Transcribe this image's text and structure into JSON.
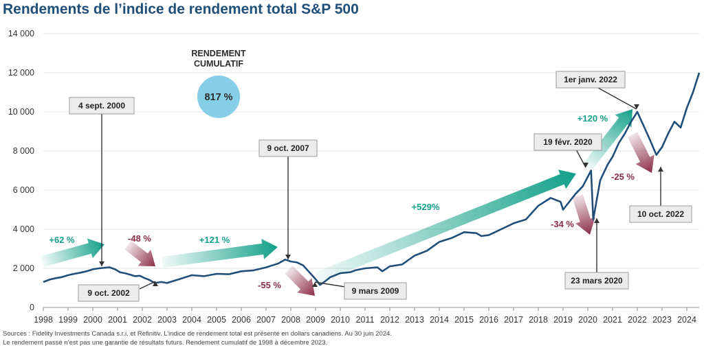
{
  "title": "Rendements de l’indice de rendement total S&P 500",
  "sources": [
    "Sources : Fidelity Investments Canada s.r.i. et Refinitiv. L’indice de rendement total est présenté en dollars canadiens. Au 30 juin 2024.",
    "Le rendement passé n’est pas une garantie de résultats futurs. Rendement cumulatif de 1998 à décembre 2023."
  ],
  "colors": {
    "line": "#1f4e79",
    "gain": "#13a089",
    "loss": "#8b2d47",
    "bubble": "#86cfe6",
    "title": "#1f4e79"
  },
  "cumulative": {
    "label_line1": "RENDEMENT",
    "label_line2": "CUMULATIF",
    "value": "817 %"
  },
  "chart_data": {
    "type": "line",
    "title": "Rendements de l’indice de rendement total S&P 500",
    "xlim": [
      1998,
      2024.5
    ],
    "ylim": [
      0,
      14000
    ],
    "yticks": [
      0,
      2000,
      4000,
      6000,
      8000,
      10000,
      12000,
      14000
    ],
    "ytick_labels": [
      "0",
      "2 000",
      "4 000",
      "6 000",
      "8 000",
      "10 000",
      "12 000",
      "14 000"
    ],
    "xticks": [
      "1998",
      "1999",
      "2000",
      "2001",
      "2002",
      "2003",
      "2004",
      "2005",
      "2006",
      "2007",
      "2008",
      "2009",
      "2010",
      "2011",
      "2012",
      "2013",
      "2014",
      "2015",
      "2016",
      "2017",
      "2018",
      "2019",
      "2020",
      "2021",
      "2022",
      "2023",
      "2024"
    ],
    "grid": "horizontal",
    "series": [
      {
        "x": [
          1998.0,
          1998.25,
          1998.5,
          1998.75,
          1999.0,
          1999.25,
          1999.5,
          1999.75,
          2000.0,
          2000.25,
          2000.5,
          2000.68,
          2000.9,
          2001.1,
          2001.3,
          2001.5,
          2001.7,
          2001.9,
          2002.1,
          2002.3,
          2002.5,
          2002.77,
          2003.0,
          2003.25,
          2003.5,
          2003.75,
          2004.0,
          2004.5,
          2005.0,
          2005.5,
          2006.0,
          2006.5,
          2007.0,
          2007.25,
          2007.5,
          2007.77,
          2008.0,
          2008.25,
          2008.5,
          2008.75,
          2009.0,
          2009.18,
          2009.4,
          2009.6,
          2009.8,
          2010.0,
          2010.4,
          2010.6,
          2011.0,
          2011.5,
          2011.7,
          2012.0,
          2012.5,
          2013.0,
          2013.5,
          2014.0,
          2014.5,
          2015.0,
          2015.5,
          2015.7,
          2016.0,
          2016.5,
          2017.0,
          2017.5,
          2018.0,
          2018.5,
          2018.9,
          2019.0,
          2019.5,
          2019.8,
          2020.13,
          2020.22,
          2020.5,
          2020.8,
          2021.0,
          2021.25,
          2021.5,
          2021.75,
          2022.0,
          2022.25,
          2022.5,
          2022.77,
          2023.0,
          2023.25,
          2023.5,
          2023.75,
          2024.0,
          2024.25,
          2024.5
        ],
        "y": [
          1300,
          1420,
          1500,
          1550,
          1650,
          1720,
          1780,
          1850,
          1950,
          2000,
          2030,
          2050,
          1950,
          1800,
          1750,
          1680,
          1600,
          1620,
          1500,
          1400,
          1250,
          1300,
          1250,
          1350,
          1450,
          1550,
          1650,
          1600,
          1720,
          1700,
          1850,
          1900,
          2050,
          2150,
          2250,
          2450,
          2350,
          2300,
          2150,
          1800,
          1450,
          1150,
          1350,
          1550,
          1650,
          1750,
          1800,
          1900,
          2000,
          2050,
          1850,
          2100,
          2200,
          2650,
          2900,
          3350,
          3550,
          3850,
          3800,
          3650,
          3700,
          4000,
          4300,
          4500,
          5200,
          5600,
          5400,
          5000,
          5800,
          6200,
          7000,
          4500,
          6500,
          7300,
          7700,
          8400,
          8900,
          9500,
          10000,
          9300,
          8600,
          7800,
          8200,
          8900,
          9500,
          9200,
          10200,
          11000,
          12000
        ]
      }
    ],
    "annotations": [
      {
        "text": "4 sept. 2000",
        "x": 2000.68,
        "y": 2050
      },
      {
        "text": "9 oct.  2002",
        "x": 2002.77,
        "y": 1300
      },
      {
        "text": "9 oct. 2007",
        "x": 2007.77,
        "y": 2450
      },
      {
        "text": "9 mars 2009",
        "x": 2009.18,
        "y": 1150
      },
      {
        "text": "19 févr. 2020",
        "x": 2020.13,
        "y": 7000
      },
      {
        "text": "23 mars 2020",
        "x": 2020.22,
        "y": 4500
      },
      {
        "text": "1er janv. 2022",
        "x": 2022.0,
        "y": 10000
      },
      {
        "text": "10 oct. 2022",
        "x": 2022.77,
        "y": 7800
      }
    ],
    "period_returns": [
      "+62 %",
      "-48 %",
      "+121 %",
      "-55 %",
      "+529%",
      "-34 %",
      "+120 %",
      "-25 %"
    ]
  }
}
